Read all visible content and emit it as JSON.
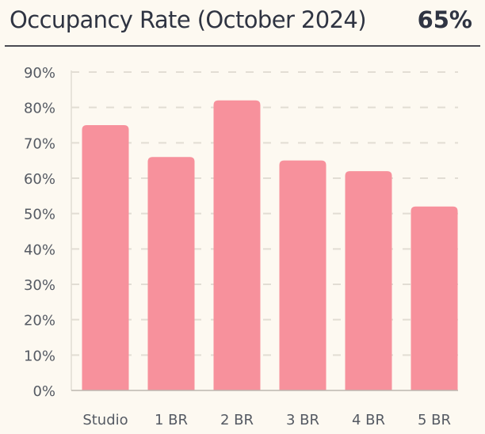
{
  "header": {
    "title": "Occupancy Rate (October 2024)",
    "kpi_value": "65%"
  },
  "colors": {
    "bar": "#f7919c",
    "grid": "#e2ddd4",
    "axis": "#bdb8b0",
    "text": "#2f3442"
  },
  "chart_data": {
    "type": "bar",
    "categories": [
      "Studio",
      "1 BR",
      "2 BR",
      "3 BR",
      "4 BR",
      "5 BR"
    ],
    "values": [
      75,
      66,
      82,
      65,
      62,
      52
    ],
    "ylim": [
      0,
      90
    ],
    "y_ticks": [
      0,
      10,
      20,
      30,
      40,
      50,
      60,
      70,
      80,
      90
    ],
    "y_tick_labels": [
      "0%",
      "10%",
      "20%",
      "30%",
      "40%",
      "50%",
      "60%",
      "70%",
      "80%",
      "90%"
    ],
    "grid": true,
    "legend": "none"
  }
}
